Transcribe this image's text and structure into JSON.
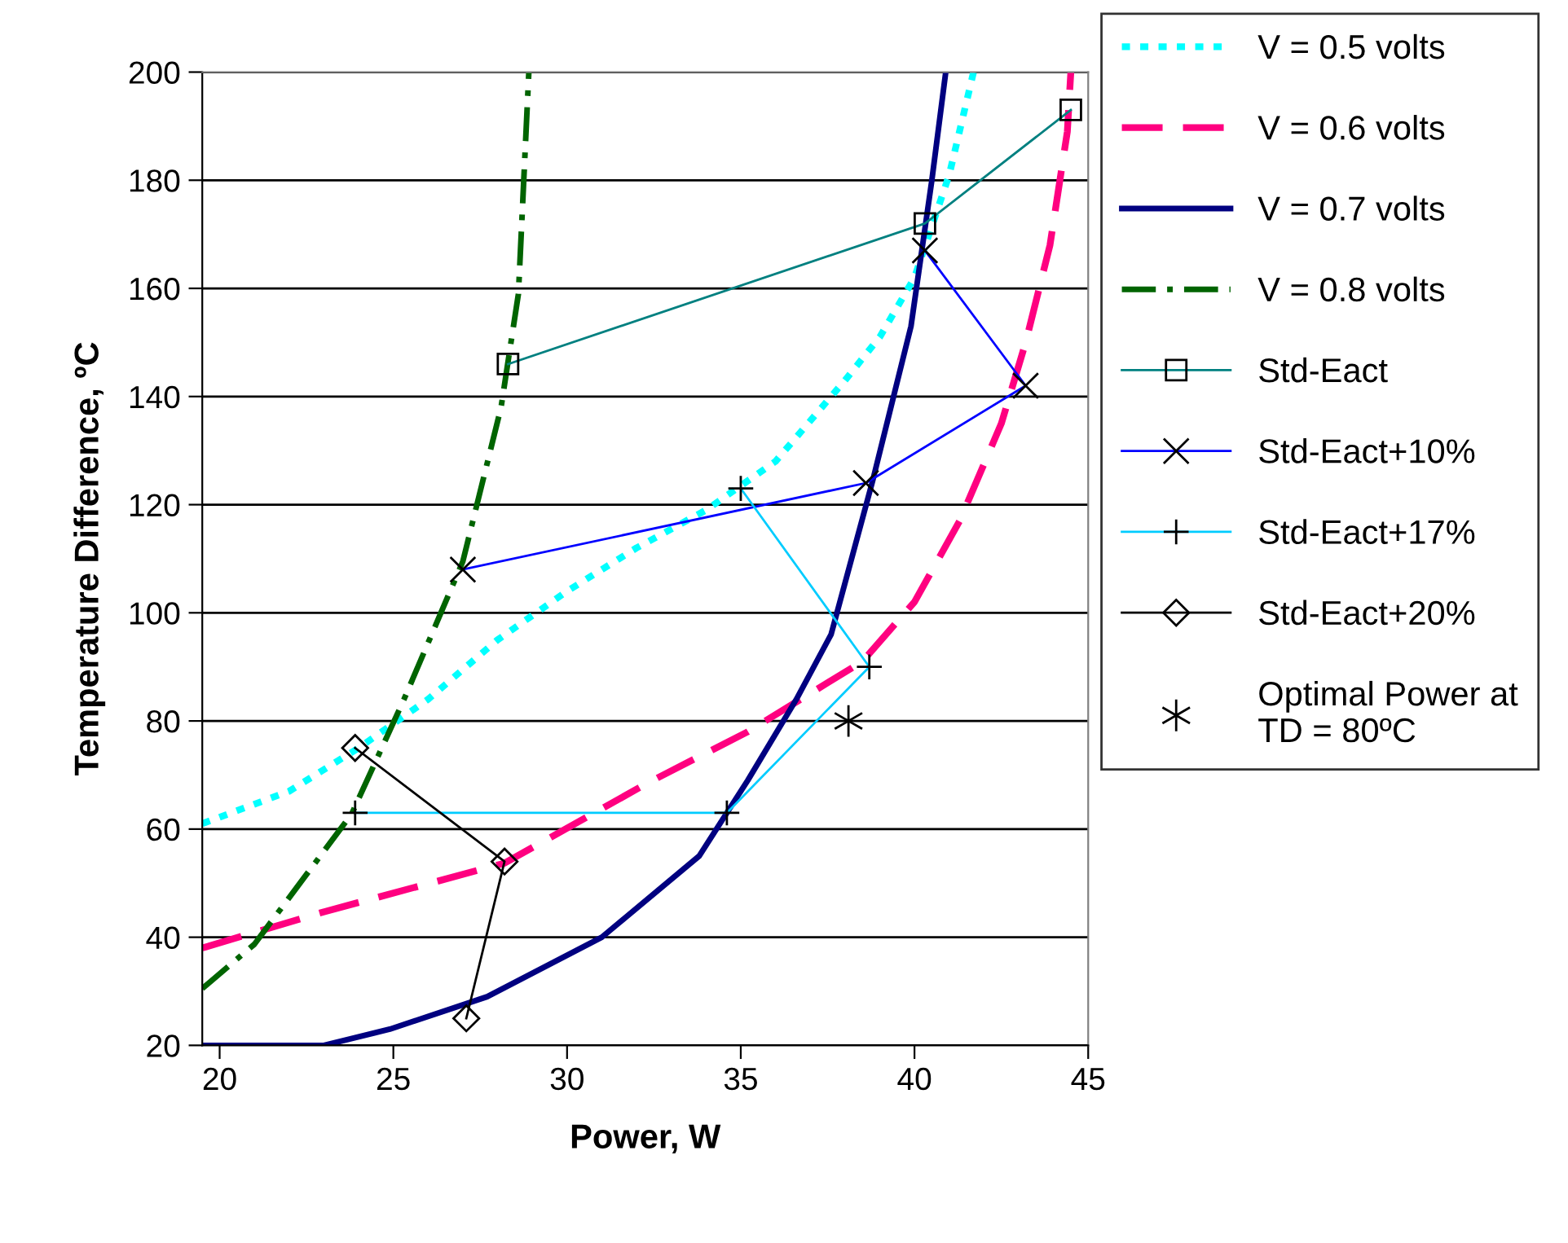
{
  "chart_data": {
    "type": "line",
    "xlabel": "Power, W",
    "ylabel": "Temperature Difference, ºC",
    "xlim": [
      19.5,
      45
    ],
    "xticks": [
      20,
      25,
      30,
      35,
      40,
      45
    ],
    "ylim": [
      20,
      200
    ],
    "yticks": [
      20,
      40,
      60,
      80,
      100,
      120,
      140,
      160,
      180,
      200
    ],
    "grid": "y",
    "legend": "right",
    "series": [
      {
        "name": "V = 0.5 volts",
        "color": "#00ffff",
        "line_style": "dotted",
        "marker": "none",
        "x": [
          19.5,
          22,
          24,
          26,
          28,
          30,
          32,
          34,
          36,
          38,
          39,
          40,
          41,
          41.7
        ],
        "values": [
          61,
          67,
          75,
          84,
          95,
          104,
          112,
          119,
          128,
          143,
          151,
          162,
          181,
          200
        ]
      },
      {
        "name": "V = 0.6 volts",
        "color": "#ff0080",
        "line_style": "dashed",
        "marker": "none",
        "x": [
          19.5,
          23,
          28.2,
          32.4,
          35.2,
          38.5,
          40,
          41.3,
          42.5,
          43.2,
          43.9,
          44.4,
          44.5
        ],
        "values": [
          38,
          44.7,
          53.7,
          68.8,
          78,
          91,
          102,
          117,
          135,
          150,
          168,
          189,
          200
        ]
      },
      {
        "name": "V = 0.7 volts",
        "color": "#000080",
        "line_style": "solid",
        "marker": "none",
        "x": [
          19.5,
          23,
          24.9,
          27.7,
          31,
          33.8,
          35.2,
          36.6,
          37.6,
          38.8,
          39.9,
          40.5,
          40.9
        ],
        "values": [
          20,
          20,
          23,
          29,
          40,
          55,
          69,
          84,
          96,
          124.5,
          153,
          180,
          200
        ]
      },
      {
        "name": "V = 0.8 volts",
        "color": "#006400",
        "line_style": "dashdot",
        "marker": "none",
        "x": [
          19.5,
          21.0,
          23.8,
          25.3,
          27.0,
          28.1,
          28.6,
          28.9
        ],
        "values": [
          30.5,
          38.7,
          62.8,
          83.9,
          109.5,
          138,
          159,
          200
        ]
      },
      {
        "name": "Std-Eact",
        "color": "#008080",
        "line_style": "solid",
        "marker": "square",
        "x": [
          28.3,
          40.3,
          44.5
        ],
        "values": [
          146,
          172,
          193
        ]
      },
      {
        "name": "Std-Eact+10%",
        "color": "#0000ff",
        "line_style": "solid",
        "marker": "cross",
        "x": [
          27.0,
          38.6,
          43.2,
          40.3
        ],
        "values": [
          108,
          124,
          142,
          167
        ]
      },
      {
        "name": "Std-Eact+17%",
        "color": "#00ccff",
        "line_style": "solid",
        "marker": "plus",
        "x": [
          23.9,
          34.6,
          38.7,
          35.0
        ],
        "values": [
          63,
          63,
          90,
          123
        ]
      },
      {
        "name": "Std-Eact+20%",
        "color": "#000000",
        "line_style": "solid",
        "marker": "diamond",
        "x": [
          23.9,
          28.2,
          27.1
        ],
        "values": [
          75,
          54,
          25
        ]
      },
      {
        "name": "Optimal Power at\nTD = 80ºC",
        "type": "scatter",
        "color": "#000000",
        "marker": "cross",
        "x": [
          38.1
        ],
        "values": [
          80
        ]
      }
    ]
  }
}
